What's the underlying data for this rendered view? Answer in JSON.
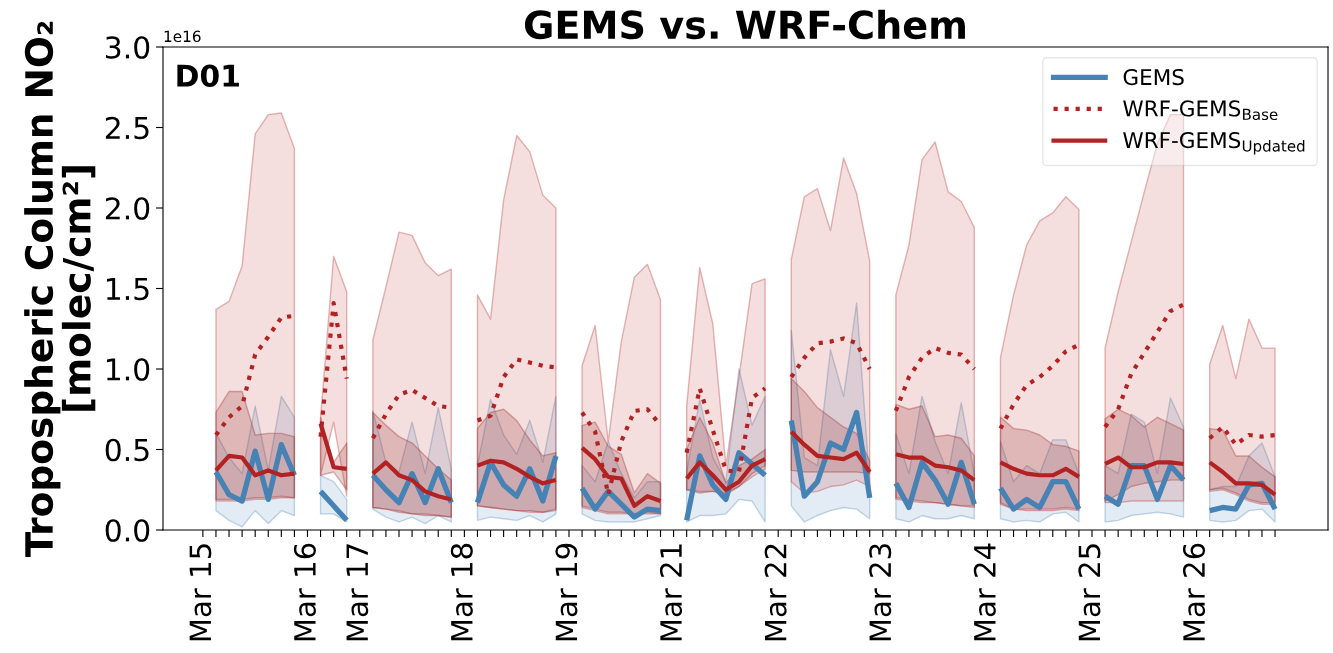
{
  "chart_data": {
    "type": "line",
    "title": "GEMS vs. WRF-Chem",
    "ylabel": "Tropospheric Column NO₂\n[molec/cm²]",
    "annotations": [
      "D01",
      "1e16"
    ],
    "categories": [
      "Mar 15",
      null,
      null,
      null,
      null,
      null,
      null,
      null,
      "Mar 16",
      null,
      null,
      null,
      "Mar 17",
      null,
      null,
      null,
      null,
      null,
      null,
      null,
      "Mar 18",
      null,
      null,
      null,
      null,
      null,
      null,
      null,
      "Mar 19",
      null,
      null,
      null,
      null,
      null,
      null,
      null,
      "Mar 21",
      null,
      null,
      null,
      null,
      null,
      null,
      null,
      "Mar 22",
      null,
      null,
      null,
      null,
      null,
      null,
      null,
      "Mar 23",
      null,
      null,
      null,
      null,
      null,
      null,
      null,
      "Mar 24",
      null,
      null,
      null,
      null,
      null,
      null,
      null,
      "Mar 25",
      null,
      null,
      null,
      null,
      null,
      null,
      null,
      "Mar 26",
      null,
      null,
      null,
      null,
      null,
      null
    ],
    "ylim": [
      0,
      3.0
    ],
    "yticks": [
      {
        "value": 0,
        "label": "0.0"
      },
      {
        "value": 0.5,
        "label": "0.5"
      },
      {
        "value": 1.0,
        "label": "1.0"
      },
      {
        "value": 1.5,
        "label": "1.5"
      },
      {
        "value": 2.0,
        "label": "2.0"
      },
      {
        "value": 2.5,
        "label": "2.5"
      },
      {
        "value": 3.0,
        "label": "3.0"
      }
    ],
    "legend": "top right",
    "series": [
      {
        "name": "GEMS",
        "color": "#4682b4",
        "line_style": "solid",
        "values": [
          null,
          0.36,
          0.22,
          0.18,
          0.49,
          0.19,
          0.53,
          0.34,
          null,
          0.24,
          0.15,
          0.06,
          null,
          0.34,
          0.25,
          0.17,
          0.35,
          0.17,
          0.38,
          0.17,
          null,
          0.17,
          0.42,
          0.28,
          0.21,
          0.38,
          0.18,
          0.46,
          null,
          0.26,
          0.13,
          0.24,
          0.16,
          0.08,
          0.13,
          0.12,
          null,
          0.06,
          0.46,
          0.28,
          0.19,
          0.48,
          0.41,
          0.34,
          null,
          0.68,
          0.21,
          0.3,
          0.54,
          0.5,
          0.73,
          0.2,
          null,
          0.29,
          0.14,
          0.42,
          0.31,
          0.16,
          0.42,
          0.16,
          null,
          0.26,
          0.13,
          0.19,
          0.14,
          0.3,
          0.3,
          0.13,
          null,
          0.21,
          0.16,
          0.4,
          0.4,
          0.19,
          0.4,
          0.31,
          null,
          0.12,
          0.14,
          0.13,
          0.28,
          0.29,
          0.13
        ],
        "lower": [
          null,
          0.12,
          0.06,
          0.02,
          0.12,
          0.04,
          0.12,
          0.09,
          null,
          0.1,
          0.1,
          0.05,
          null,
          0.13,
          0.08,
          0.05,
          0.08,
          0.04,
          0.09,
          0.05,
          null,
          0.06,
          0.08,
          0.07,
          0.06,
          0.09,
          0.05,
          0.1,
          null,
          0.1,
          0.06,
          0.05,
          0.05,
          0.05,
          0.07,
          0.09,
          null,
          0.05,
          0.09,
          0.09,
          0.1,
          0.19,
          0.18,
          0.05,
          null,
          0.15,
          0.05,
          0.09,
          0.12,
          0.14,
          0.13,
          0.07,
          null,
          0.07,
          0.05,
          0.09,
          0.07,
          0.07,
          0.09,
          0.07,
          null,
          0.07,
          0.05,
          0.06,
          0.05,
          0.1,
          0.11,
          0.05,
          null,
          0.05,
          0.06,
          0.09,
          0.1,
          0.11,
          0.1,
          0.08,
          null,
          0.06,
          0.05,
          0.06,
          0.12,
          0.13,
          0.05
        ],
        "upper": [
          null,
          0.6,
          0.45,
          0.35,
          0.77,
          0.37,
          0.83,
          0.7,
          null,
          0.34,
          0.3,
          0.19,
          null,
          0.74,
          0.42,
          0.36,
          0.67,
          0.35,
          0.76,
          0.38,
          null,
          0.4,
          0.81,
          0.59,
          0.47,
          0.68,
          0.42,
          0.83,
          null,
          0.4,
          0.3,
          0.55,
          0.35,
          0.2,
          0.3,
          0.3,
          null,
          0.36,
          0.81,
          0.45,
          0.3,
          1.0,
          0.65,
          0.83,
          null,
          1.24,
          0.45,
          0.4,
          1.12,
          0.83,
          1.41,
          0.3,
          null,
          0.6,
          0.35,
          0.83,
          0.55,
          0.35,
          0.79,
          0.35,
          null,
          0.55,
          0.3,
          0.4,
          0.35,
          0.56,
          0.56,
          0.35,
          null,
          0.4,
          0.35,
          0.72,
          0.67,
          0.35,
          0.82,
          0.64,
          null,
          0.25,
          0.27,
          0.27,
          0.46,
          0.54,
          0.33
        ]
      },
      {
        "name": "WRF-GEMS$_{Base}$",
        "color": "#b22222",
        "line_style": "dotted",
        "values": [
          null,
          0.59,
          0.7,
          0.77,
          1.09,
          1.2,
          1.32,
          1.33,
          null,
          0.58,
          1.41,
          0.94,
          null,
          0.57,
          0.72,
          0.84,
          0.87,
          0.82,
          0.77,
          0.76,
          null,
          0.68,
          0.71,
          0.95,
          1.06,
          1.04,
          1.02,
          1.01,
          null,
          0.73,
          0.61,
          0.22,
          0.55,
          0.74,
          0.75,
          0.65,
          null,
          0.48,
          0.88,
          0.62,
          0.37,
          0.36,
          0.82,
          0.88,
          null,
          0.95,
          1.07,
          1.16,
          1.17,
          1.19,
          1.16,
          1.0,
          null,
          0.74,
          0.95,
          1.07,
          1.13,
          1.1,
          1.09,
          1.0,
          null,
          0.63,
          0.78,
          0.9,
          0.95,
          1.02,
          1.11,
          1.15,
          null,
          0.64,
          0.75,
          0.97,
          1.1,
          1.23,
          1.36,
          1.4,
          null,
          0.57,
          0.64,
          0.53,
          0.59,
          0.58,
          0.59
        ],
        "lower": [
          null,
          0.18,
          0.18,
          0.18,
          0.19,
          0.19,
          0.2,
          0.2,
          null,
          0.34,
          0.67,
          0.21,
          null,
          0.14,
          0.13,
          0.12,
          0.1,
          0.1,
          0.09,
          0.08,
          null,
          0.15,
          0.14,
          0.13,
          0.12,
          0.11,
          0.11,
          0.12,
          null,
          0.14,
          0.12,
          0.1,
          0.1,
          0.1,
          0.1,
          0.1,
          null,
          0.25,
          0.24,
          0.24,
          0.23,
          0.27,
          0.33,
          0.38,
          null,
          0.3,
          0.23,
          0.24,
          0.27,
          0.28,
          0.31,
          0.27,
          null,
          0.19,
          0.18,
          0.17,
          0.17,
          0.16,
          0.15,
          0.14,
          null,
          0.16,
          0.13,
          0.12,
          0.12,
          0.12,
          0.13,
          0.12,
          null,
          0.17,
          0.17,
          0.18,
          0.18,
          0.18,
          0.18,
          0.18,
          null,
          0.24,
          0.25,
          0.22,
          0.18,
          0.16,
          0.16
        ],
        "upper": [
          null,
          1.37,
          1.42,
          1.64,
          2.46,
          2.58,
          2.59,
          2.37,
          null,
          0.7,
          1.7,
          1.48,
          null,
          1.18,
          1.51,
          1.85,
          1.83,
          1.66,
          1.58,
          1.62,
          null,
          1.46,
          1.31,
          2.05,
          2.45,
          2.35,
          2.08,
          2.0,
          null,
          1.02,
          1.27,
          0.55,
          1.17,
          1.57,
          1.65,
          1.43,
          null,
          0.77,
          1.63,
          1.28,
          0.4,
          0.95,
          1.53,
          1.56,
          null,
          1.68,
          2.07,
          2.12,
          1.86,
          2.31,
          2.09,
          1.67,
          null,
          1.46,
          1.77,
          2.3,
          2.41,
          2.1,
          2.04,
          1.88,
          null,
          1.07,
          1.46,
          1.77,
          1.92,
          1.97,
          2.07,
          1.99,
          null,
          1.13,
          1.48,
          1.79,
          2.1,
          2.4,
          2.58,
          2.58,
          null,
          1.03,
          1.27,
          0.94,
          1.31,
          1.13,
          1.13
        ]
      },
      {
        "name": "WRF-GEMS$_{Updated}$",
        "color": "#b22222",
        "line_style": "solid",
        "values": [
          null,
          0.37,
          0.46,
          0.45,
          0.34,
          0.37,
          0.34,
          0.35,
          null,
          0.66,
          0.39,
          0.38,
          null,
          0.35,
          0.42,
          0.34,
          0.31,
          0.24,
          0.21,
          0.19,
          null,
          0.4,
          0.43,
          0.42,
          0.38,
          0.33,
          0.29,
          0.31,
          null,
          0.51,
          0.44,
          0.33,
          0.32,
          0.15,
          0.21,
          0.18,
          null,
          0.32,
          0.42,
          0.34,
          0.25,
          0.3,
          0.4,
          0.44,
          null,
          0.61,
          0.53,
          0.46,
          0.45,
          0.44,
          0.48,
          0.36,
          null,
          0.47,
          0.45,
          0.45,
          0.4,
          0.39,
          0.37,
          0.31,
          null,
          0.42,
          0.38,
          0.35,
          0.34,
          0.34,
          0.38,
          0.33,
          null,
          0.41,
          0.45,
          0.39,
          0.39,
          0.42,
          0.42,
          0.41,
          null,
          0.42,
          0.36,
          0.29,
          0.29,
          0.28,
          0.22
        ],
        "lower": [
          null,
          0.19,
          0.19,
          0.19,
          0.2,
          0.2,
          0.21,
          0.2,
          null,
          0.34,
          0.36,
          0.25,
          null,
          0.14,
          0.13,
          0.11,
          0.1,
          0.09,
          0.09,
          0.08,
          null,
          0.15,
          0.14,
          0.13,
          0.12,
          0.12,
          0.11,
          0.13,
          null,
          0.15,
          0.13,
          0.11,
          0.11,
          0.1,
          0.11,
          0.1,
          null,
          0.25,
          0.23,
          0.24,
          0.22,
          0.27,
          0.35,
          0.4,
          null,
          0.37,
          0.36,
          0.36,
          0.36,
          0.36,
          0.36,
          0.35,
          null,
          0.2,
          0.19,
          0.18,
          0.17,
          0.16,
          0.15,
          0.15,
          null,
          0.17,
          0.13,
          0.13,
          0.13,
          0.13,
          0.14,
          0.13,
          null,
          0.18,
          0.22,
          0.27,
          0.29,
          0.3,
          0.31,
          0.31,
          null,
          0.25,
          0.26,
          0.23,
          0.19,
          0.17,
          0.17
        ],
        "upper": [
          null,
          0.73,
          0.86,
          0.86,
          0.59,
          0.6,
          0.6,
          0.58,
          null,
          0.7,
          0.42,
          0.54,
          null,
          0.73,
          0.65,
          0.58,
          0.54,
          0.46,
          0.38,
          0.31,
          null,
          0.63,
          0.73,
          0.75,
          0.68,
          0.56,
          0.46,
          0.48,
          null,
          0.65,
          0.67,
          0.52,
          0.47,
          0.23,
          0.35,
          0.29,
          null,
          0.5,
          0.7,
          0.54,
          0.29,
          0.4,
          0.44,
          0.5,
          null,
          0.94,
          0.86,
          0.76,
          0.7,
          0.64,
          0.6,
          0.43,
          null,
          0.78,
          0.75,
          0.77,
          0.58,
          0.59,
          0.57,
          0.46,
          null,
          0.7,
          0.63,
          0.62,
          0.59,
          0.53,
          0.52,
          0.49,
          null,
          0.69,
          0.75,
          0.71,
          0.64,
          0.7,
          0.66,
          0.62,
          null,
          0.63,
          0.62,
          0.46,
          0.46,
          0.39,
          0.33
        ]
      }
    ]
  }
}
